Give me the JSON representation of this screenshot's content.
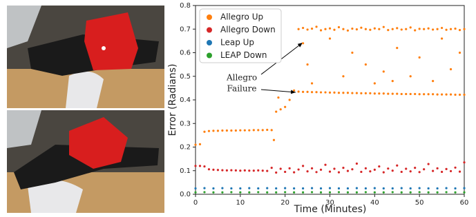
{
  "chart_data": {
    "type": "scatter",
    "xlabel": "Time (Minutes)",
    "ylabel": "Error (Radians)",
    "xlim": [
      0,
      60
    ],
    "xticks": [
      0,
      10,
      20,
      30,
      40,
      50,
      60
    ],
    "ylim": [
      0,
      0.8
    ],
    "yticks": [
      {
        "value": 0,
        "label": "0.0"
      },
      0.1,
      0.2,
      0.3,
      0.4,
      0.5,
      0.6,
      0.7,
      0.8
    ],
    "legend": "upper left",
    "annotation": [
      "Allegro",
      "Failure"
    ],
    "series": [
      {
        "name": "Allegro Up",
        "color": "#ff7f0e",
        "x": [
          0,
          1,
          2,
          3,
          4,
          5,
          6,
          7,
          8,
          9,
          10,
          11,
          12,
          13,
          14,
          15,
          16,
          17,
          17.5,
          18,
          18.5,
          19,
          20,
          21,
          22,
          23,
          24,
          25,
          26,
          27,
          28,
          29,
          30,
          31,
          32,
          33,
          34,
          35,
          36,
          37,
          38,
          39,
          40,
          41,
          42,
          43,
          44,
          45,
          46,
          47,
          48,
          49,
          50,
          51,
          52,
          53,
          54,
          55,
          56,
          57,
          58,
          59,
          60,
          23,
          24,
          25,
          26,
          27,
          28,
          29,
          30,
          31,
          32,
          33,
          34,
          35,
          36,
          37,
          38,
          39,
          40,
          41,
          42,
          43,
          44,
          45,
          46,
          47,
          48,
          49,
          50,
          51,
          52,
          53,
          54,
          55,
          56,
          57,
          58,
          59,
          60,
          24,
          25,
          30,
          33,
          35,
          38,
          40,
          42,
          45,
          48,
          50,
          53,
          55,
          57,
          59,
          26,
          44
        ],
        "values": [
          0.21,
          0.212,
          0.265,
          0.268,
          0.269,
          0.269,
          0.27,
          0.27,
          0.27,
          0.27,
          0.271,
          0.271,
          0.271,
          0.272,
          0.272,
          0.272,
          0.273,
          0.272,
          0.23,
          0.35,
          0.41,
          0.36,
          0.37,
          0.4,
          0.44,
          0.435,
          0.434,
          0.434,
          0.433,
          0.433,
          0.432,
          0.432,
          0.431,
          0.431,
          0.43,
          0.43,
          0.43,
          0.429,
          0.429,
          0.428,
          0.428,
          0.428,
          0.427,
          0.427,
          0.427,
          0.426,
          0.426,
          0.426,
          0.425,
          0.425,
          0.425,
          0.425,
          0.424,
          0.424,
          0.424,
          0.424,
          0.423,
          0.423,
          0.423,
          0.423,
          0.422,
          0.422,
          0.422,
          0.7,
          0.705,
          0.698,
          0.702,
          0.71,
          0.695,
          0.7,
          0.703,
          0.697,
          0.708,
          0.7,
          0.694,
          0.702,
          0.699,
          0.706,
          0.7,
          0.697,
          0.703,
          0.7,
          0.709,
          0.696,
          0.7,
          0.704,
          0.698,
          0.7,
          0.707,
          0.695,
          0.701,
          0.7,
          0.703,
          0.698,
          0.7,
          0.705,
          0.697,
          0.7,
          0.702,
          0.696,
          0.7,
          0.64,
          0.55,
          0.66,
          0.5,
          0.6,
          0.55,
          0.47,
          0.52,
          0.62,
          0.5,
          0.58,
          0.48,
          0.66,
          0.53,
          0.6,
          0.47,
          0.48
        ]
      },
      {
        "name": "Allegro Down",
        "color": "#d62728",
        "x": [
          0,
          1,
          2,
          3,
          4,
          5,
          6,
          7,
          8,
          9,
          10,
          11,
          12,
          13,
          14,
          15,
          16,
          17,
          18,
          19,
          20,
          21,
          22,
          23,
          24,
          25,
          26,
          27,
          28,
          29,
          30,
          31,
          32,
          33,
          34,
          35,
          36,
          37,
          38,
          39,
          40,
          41,
          42,
          43,
          44,
          45,
          46,
          47,
          48,
          49,
          50,
          51,
          52,
          53,
          54,
          55,
          56,
          57,
          58,
          59,
          60
        ],
        "values": [
          0.12,
          0.12,
          0.118,
          0.106,
          0.104,
          0.103,
          0.102,
          0.101,
          0.102,
          0.101,
          0.1,
          0.101,
          0.1,
          0.1,
          0.101,
          0.1,
          0.099,
          0.112,
          0.092,
          0.108,
          0.095,
          0.11,
          0.093,
          0.105,
          0.12,
          0.097,
          0.11,
          0.094,
          0.104,
          0.125,
          0.096,
          0.108,
          0.093,
          0.112,
          0.099,
          0.106,
          0.13,
          0.095,
          0.11,
          0.097,
          0.104,
          0.118,
          0.093,
          0.109,
          0.1,
          0.122,
          0.095,
          0.108,
          0.097,
          0.112,
          0.094,
          0.106,
          0.128,
          0.099,
          0.11,
          0.095,
          0.107,
          0.098,
          0.113,
          0.096,
          0.135
        ]
      },
      {
        "name": "Leap Up",
        "color": "#1f77b4",
        "x": [
          0,
          2,
          4,
          6,
          8,
          10,
          12,
          14,
          16,
          18,
          20,
          22,
          24,
          26,
          28,
          30,
          32,
          34,
          36,
          38,
          40,
          42,
          44,
          46,
          48,
          50,
          52,
          54,
          56,
          58,
          60
        ],
        "values": [
          0.025,
          0.026,
          0.025,
          0.026,
          0.025,
          0.025,
          0.026,
          0.025,
          0.026,
          0.025,
          0.026,
          0.025,
          0.025,
          0.026,
          0.025,
          0.026,
          0.025,
          0.025,
          0.026,
          0.025,
          0.026,
          0.025,
          0.025,
          0.026,
          0.025,
          0.026,
          0.025,
          0.025,
          0.026,
          0.025,
          0.026
        ]
      },
      {
        "name": "LEAP Down",
        "color": "#2ca02c",
        "x": [
          0,
          2,
          4,
          6,
          8,
          10,
          12,
          14,
          16,
          18,
          20,
          22,
          24,
          26,
          28,
          30,
          32,
          34,
          36,
          38,
          40,
          42,
          44,
          46,
          48,
          50,
          52,
          54,
          56,
          58,
          60
        ],
        "values": [
          0.008,
          0.009,
          0.008,
          0.008,
          0.009,
          0.008,
          0.008,
          0.009,
          0.008,
          0.008,
          0.009,
          0.008,
          0.008,
          0.009,
          0.008,
          0.008,
          0.009,
          0.008,
          0.008,
          0.009,
          0.008,
          0.008,
          0.009,
          0.008,
          0.008,
          0.009,
          0.008,
          0.008,
          0.009,
          0.008,
          0.008
        ]
      }
    ]
  }
}
